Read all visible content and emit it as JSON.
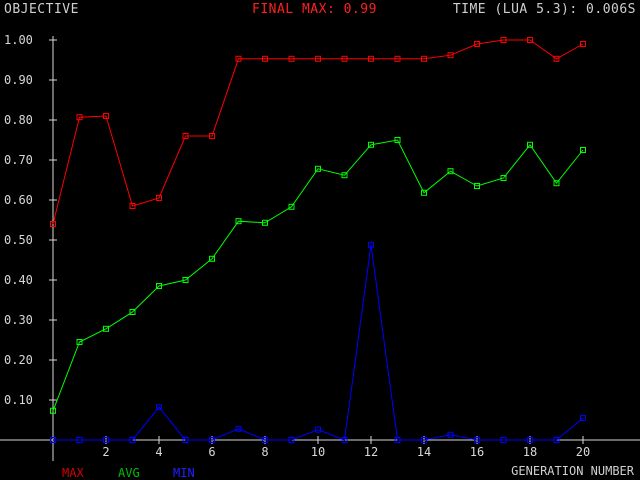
{
  "header": {
    "left": "OBJECTIVE",
    "middle": "FINAL MAX: 0.99",
    "right": "TIME (LUA 5.3): 0.006S"
  },
  "chart_data": {
    "type": "line",
    "xlabel": "GENERATION NUMBER",
    "ylabel": "OBJECTIVE",
    "x": [
      0,
      1,
      2,
      3,
      4,
      5,
      6,
      7,
      8,
      9,
      10,
      11,
      12,
      13,
      14,
      15,
      16,
      17,
      18,
      19,
      20
    ],
    "xlim": [
      0,
      20
    ],
    "ylim": [
      0,
      1.0
    ],
    "xticks": [
      2,
      4,
      6,
      8,
      10,
      12,
      14,
      16,
      18,
      20
    ],
    "yticks": [
      "0.10",
      "0.20",
      "0.30",
      "0.40",
      "0.50",
      "0.60",
      "0.70",
      "0.80",
      "0.90",
      "1.00"
    ],
    "grid": false,
    "legend": "bottom-left",
    "series": [
      {
        "name": "MAX",
        "color": "#ff0000",
        "values": [
          0.54,
          0.807,
          0.81,
          0.585,
          0.605,
          0.76,
          0.76,
          0.953,
          0.953,
          0.953,
          0.953,
          0.953,
          0.953,
          0.953,
          0.953,
          0.962,
          0.99,
          1.0,
          1.0,
          0.953,
          0.99
        ]
      },
      {
        "name": "AVG",
        "color": "#00ff00",
        "values": [
          0.073,
          0.245,
          0.278,
          0.32,
          0.385,
          0.4,
          0.453,
          0.547,
          0.543,
          0.583,
          0.678,
          0.662,
          0.738,
          0.75,
          0.618,
          0.672,
          0.635,
          0.655,
          0.738,
          0.642,
          0.725
        ]
      },
      {
        "name": "MIN",
        "color": "#0000ff",
        "values": [
          0.0,
          0.0,
          0.0,
          0.0,
          0.082,
          0.0,
          0.0,
          0.028,
          0.0,
          0.0,
          0.026,
          0.0,
          0.488,
          0.0,
          0.0,
          0.013,
          0.0,
          0.0,
          0.0,
          0.0,
          0.055
        ]
      }
    ]
  }
}
